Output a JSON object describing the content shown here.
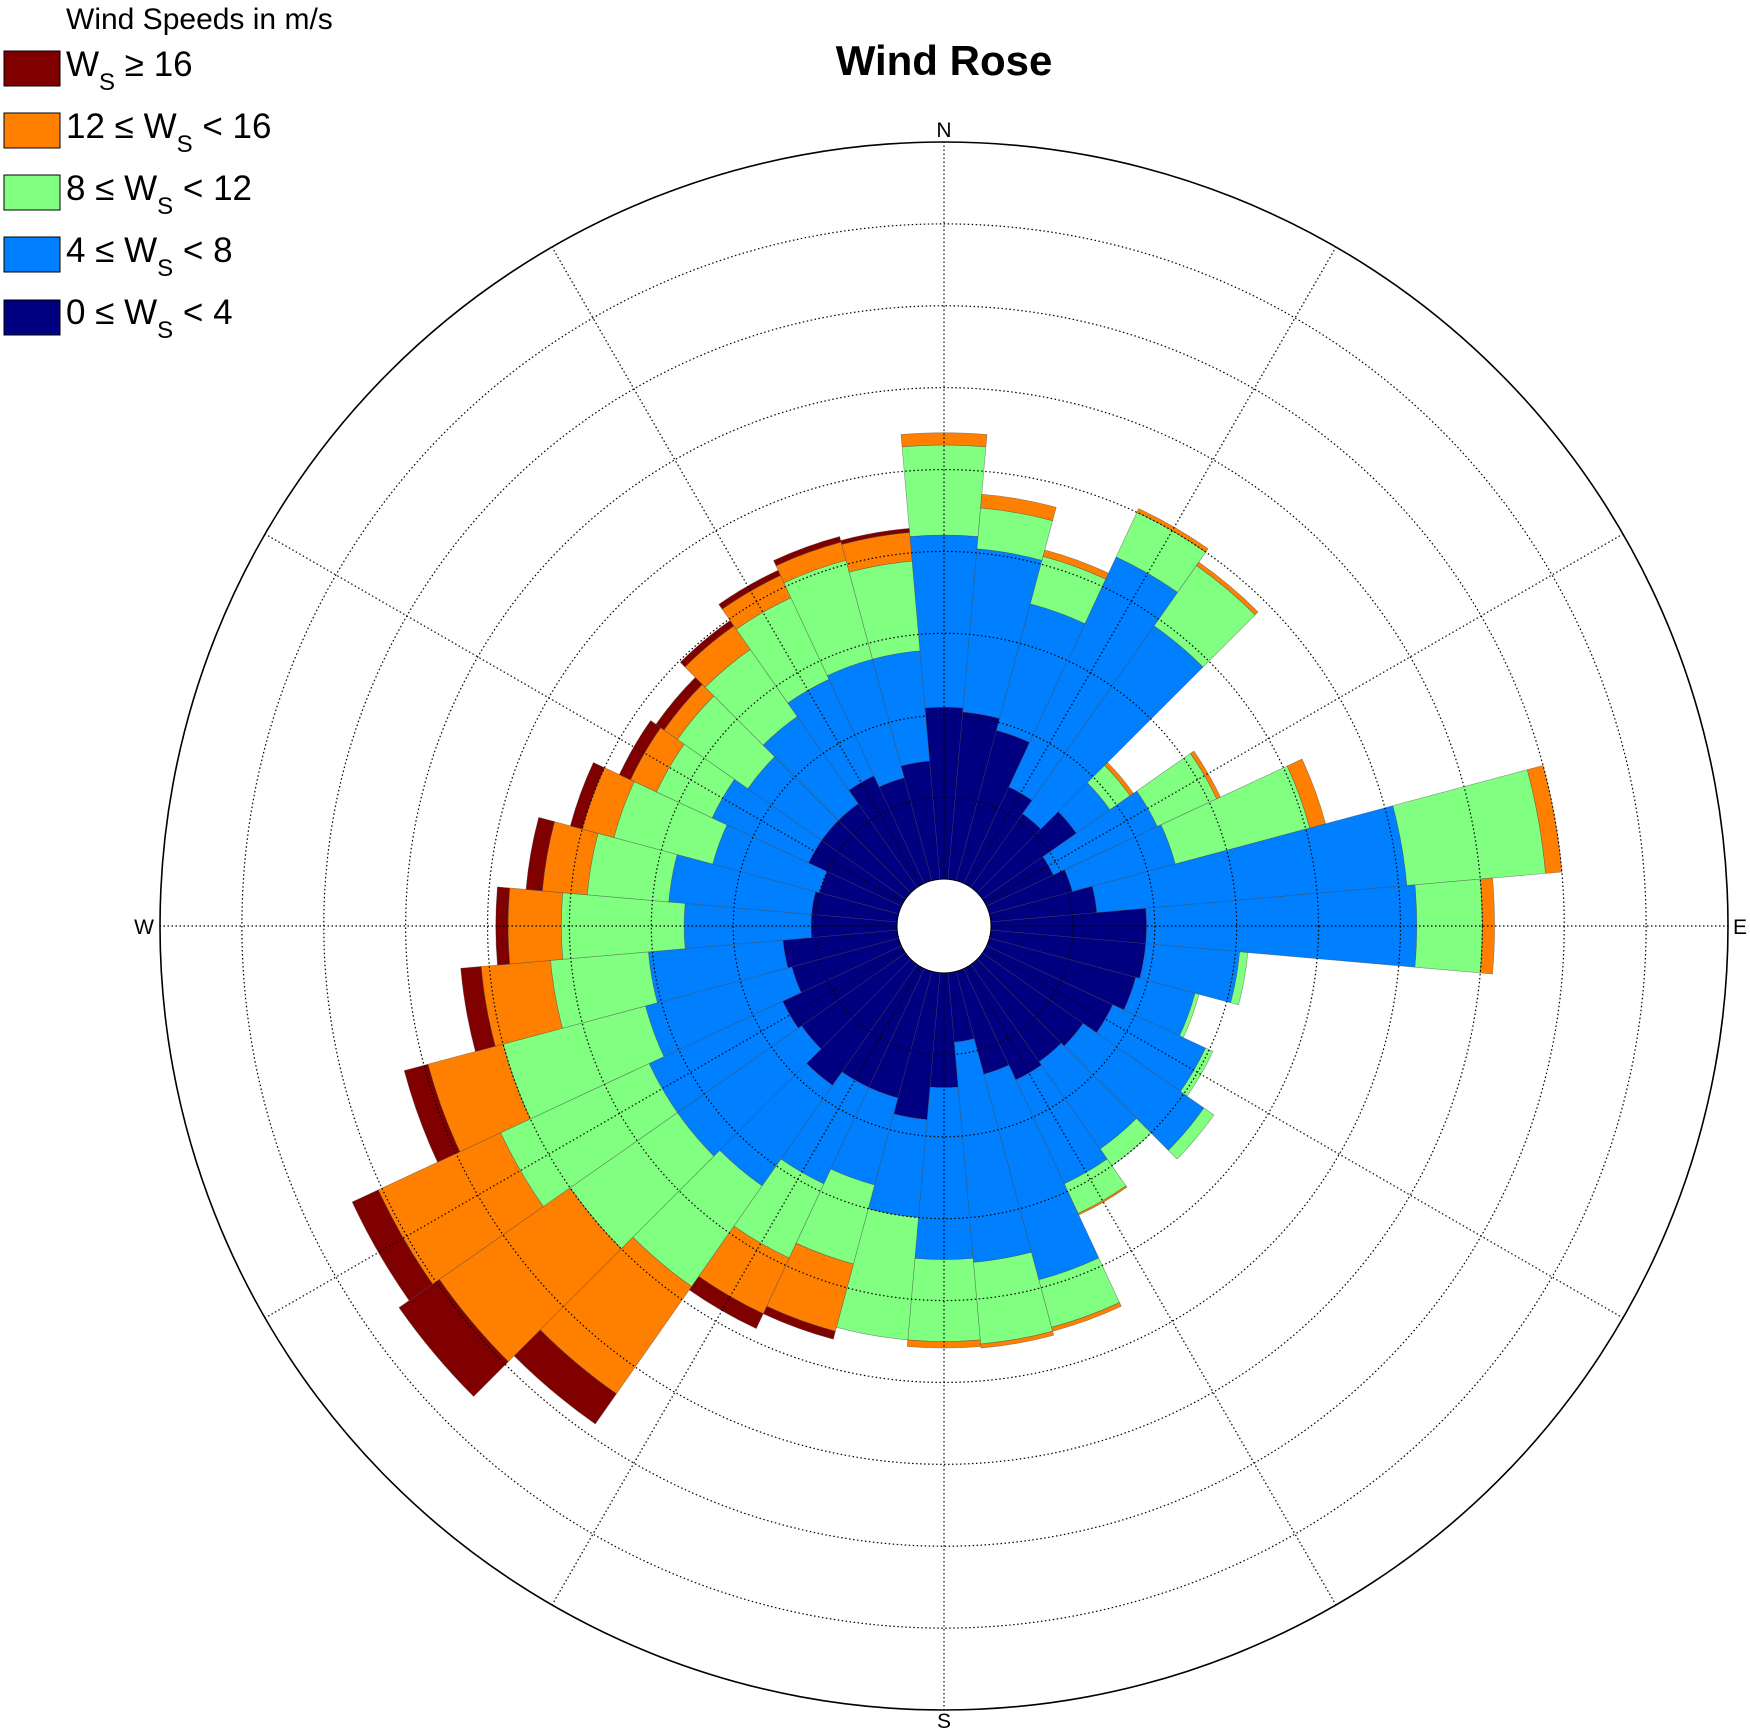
{
  "chart_data": {
    "type": "wind-rose",
    "title": "Wind Rose",
    "legend": {
      "title": "Wind Speeds in m/s",
      "placement": "top-left",
      "entries": [
        {
          "pre": "W",
          "sub": "S",
          "post": " ≥ 16",
          "color": "#800000"
        },
        {
          "pre": "12 ≤ W",
          "sub": "S",
          "post": " < 16",
          "color": "#ff8000"
        },
        {
          "pre": "8 ≤ W",
          "sub": "S",
          "post": " < 12",
          "color": "#80ff80"
        },
        {
          "pre": "4 ≤ W",
          "sub": "S",
          "post": " < 8",
          "color": "#0080ff"
        },
        {
          "pre": "0 ≤ W",
          "sub": "S",
          "post": " < 4",
          "color": "#000080"
        }
      ]
    },
    "directions": {
      "north": "N",
      "east": "E",
      "south": "S",
      "west": "W"
    },
    "bin_width_deg": 10,
    "sector_width_deg": 10,
    "speed_bins": [
      "0-4",
      "4-8",
      "8-12",
      "12-16",
      ">=16"
    ],
    "bin_colors": [
      "#000080",
      "#0080ff",
      "#80ff80",
      "#ff8000",
      "#800000"
    ],
    "ring_count": 9,
    "max_radius_units": 9,
    "grid": true,
    "sectors": [
      {
        "dir": 0,
        "cumulative": [
          2.1,
          4.2,
          5.3,
          5.45,
          5.45
        ]
      },
      {
        "dir": 10,
        "cumulative": [
          2.05,
          4.05,
          4.55,
          4.72,
          4.72
        ]
      },
      {
        "dir": 20,
        "cumulative": [
          1.9,
          3.5,
          4.1,
          4.18,
          4.18
        ]
      },
      {
        "dir": 30,
        "cumulative": [
          1.3,
          4.4,
          5.0,
          5.05,
          5.05
        ]
      },
      {
        "dir": 40,
        "cumulative": [
          1.1,
          3.9,
          4.8,
          4.85,
          4.85
        ]
      },
      {
        "dir": 50,
        "cumulative": [
          1.4,
          1.9,
          2.2,
          2.25,
          2.25
        ]
      },
      {
        "dir": 60,
        "cumulative": [
          0.9,
          2.3,
          3.1,
          3.15,
          3.15
        ]
      },
      {
        "dir": 70,
        "cumulative": [
          1.05,
          2.35,
          4.05,
          4.25,
          4.25
        ]
      },
      {
        "dir": 80,
        "cumulative": [
          1.3,
          5.1,
          6.8,
          7.0,
          7.0
        ]
      },
      {
        "dir": 90,
        "cumulative": [
          1.9,
          5.2,
          6.0,
          6.15,
          6.15
        ]
      },
      {
        "dir": 100,
        "cumulative": [
          1.9,
          3.05,
          3.15,
          3.15,
          3.15
        ]
      },
      {
        "dir": 110,
        "cumulative": [
          1.85,
          2.6,
          2.65,
          2.65,
          2.65
        ]
      },
      {
        "dir": 120,
        "cumulative": [
          1.7,
          2.95,
          3.05,
          3.05,
          3.05
        ]
      },
      {
        "dir": 130,
        "cumulative": [
          1.5,
          3.3,
          3.45,
          3.45,
          3.45
        ]
      },
      {
        "dir": 140,
        "cumulative": [
          1.45,
          2.75,
          3.0,
          3.0,
          3.0
        ]
      },
      {
        "dir": 150,
        "cumulative": [
          1.5,
          2.9,
          3.3,
          3.32,
          3.32
        ]
      },
      {
        "dir": 160,
        "cumulative": [
          1.3,
          3.9,
          4.5,
          4.55,
          4.55
        ]
      },
      {
        "dir": 170,
        "cumulative": [
          0.85,
          3.55,
          4.55,
          4.6,
          4.6
        ]
      },
      {
        "dir": 180,
        "cumulative": [
          1.4,
          3.5,
          4.5,
          4.58,
          4.58
        ]
      },
      {
        "dir": 190,
        "cumulative": [
          1.8,
          3.0,
          4.5,
          4.5,
          4.5
        ]
      },
      {
        "dir": 200,
        "cumulative": [
          1.6,
          2.7,
          3.7,
          4.55,
          4.65
        ]
      },
      {
        "dir": 210,
        "cumulative": [
          1.6,
          2.9,
          3.9,
          4.65,
          4.85
        ]
      },
      {
        "dir": 220,
        "cumulative": [
          1.8,
          3.3,
          4.8,
          6.4,
          6.85
        ]
      },
      {
        "dir": 230,
        "cumulative": [
          1.55,
          3.4,
          5.0,
          6.95,
          7.55
        ]
      },
      {
        "dir": 240,
        "cumulative": [
          1.6,
          3.4,
          5.4,
          7.05,
          7.4
        ]
      },
      {
        "dir": 250,
        "cumulative": [
          1.35,
          3.2,
          5.0,
          5.95,
          6.25
        ]
      },
      {
        "dir": 260,
        "cumulative": [
          1.4,
          3.05,
          4.25,
          5.1,
          5.35
        ]
      },
      {
        "dir": 270,
        "cumulative": [
          1.05,
          2.6,
          4.1,
          4.75,
          4.9
        ]
      },
      {
        "dir": 280,
        "cumulative": [
          1.05,
          2.8,
          3.8,
          4.35,
          4.55
        ]
      },
      {
        "dir": 290,
        "cumulative": [
          1.0,
          2.35,
          3.6,
          4.0,
          4.15
        ]
      },
      {
        "dir": 300,
        "cumulative": [
          1.25,
          2.55,
          3.3,
          3.65,
          3.8
        ]
      },
      {
        "dir": 310,
        "cumulative": [
          1.25,
          2.35,
          3.4,
          3.6,
          3.72
        ]
      },
      {
        "dir": 320,
        "cumulative": [
          1.25,
          2.55,
          3.55,
          3.9,
          3.98
        ]
      },
      {
        "dir": 330,
        "cumulative": [
          1.45,
          2.75,
          3.85,
          4.15,
          4.22
        ]
      },
      {
        "dir": 340,
        "cumulative": [
          1.3,
          2.8,
          4.05,
          4.28,
          4.35
        ]
      },
      {
        "dir": 350,
        "cumulative": [
          1.45,
          2.8,
          3.9,
          4.25,
          4.3
        ]
      }
    ]
  }
}
